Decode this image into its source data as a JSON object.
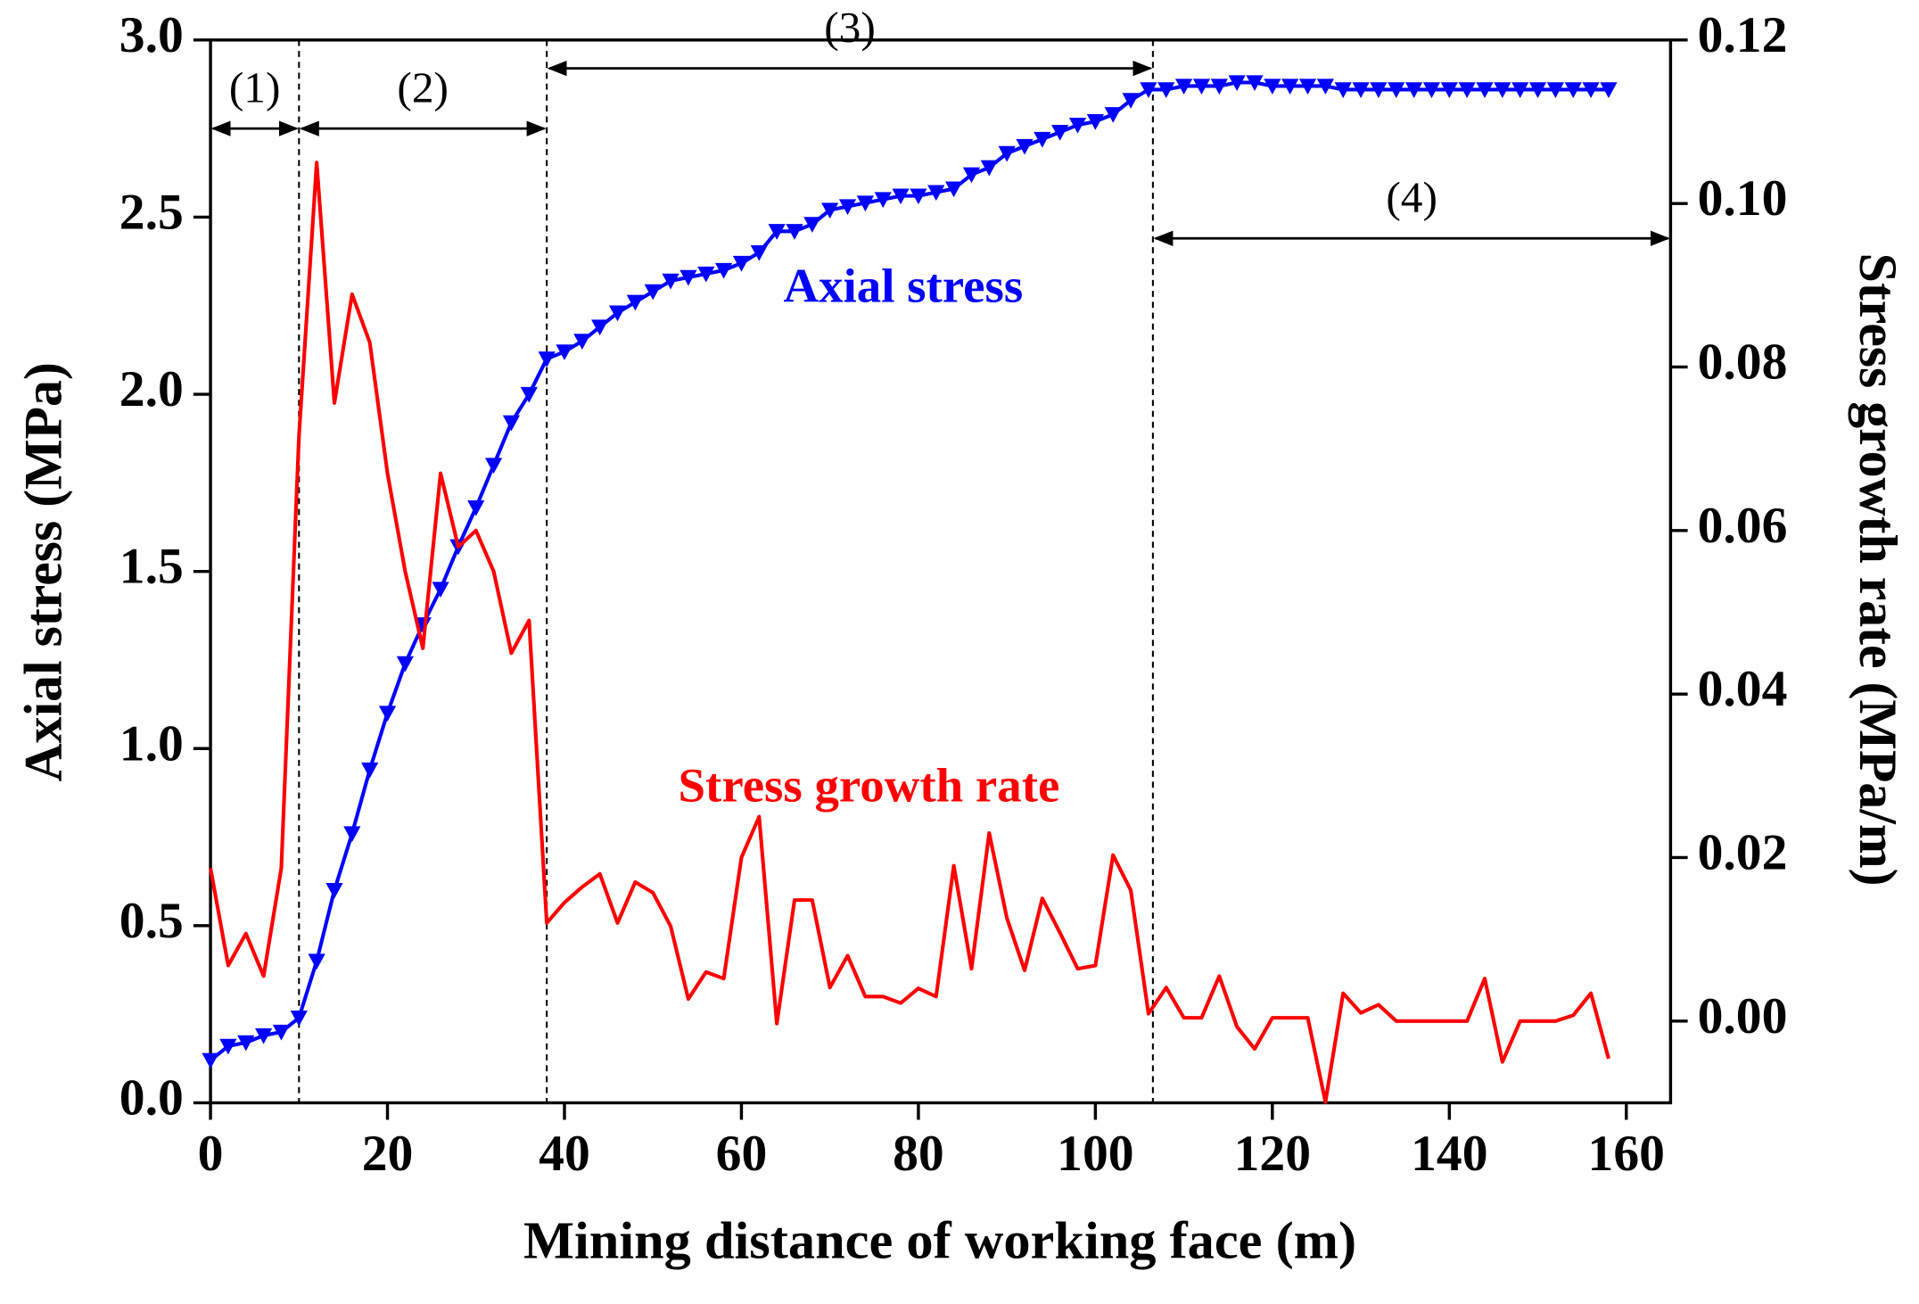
{
  "chart_data": {
    "type": "line",
    "x_label": "Mining distance of working face (m)",
    "y_label": "Axial stress (MPa)",
    "y2_label": "Stress growth rate (MPa/m)",
    "xlim": [
      0,
      165
    ],
    "xticks": [
      0,
      20,
      40,
      60,
      80,
      100,
      120,
      140,
      160
    ],
    "ylim": [
      0,
      3
    ],
    "yticks": [
      {
        "value": 0,
        "label": "0.0"
      },
      0.5,
      {
        "value": 1,
        "label": "1.0"
      },
      1.5,
      {
        "value": 2,
        "label": "2.0"
      },
      2.5,
      {
        "value": 3,
        "label": "3.0"
      }
    ],
    "y2lim": [
      -0.01,
      0.12
    ],
    "y2ticks": [
      {
        "value": 0,
        "label": "0.00"
      },
      0.02,
      0.04,
      0.06,
      0.08,
      {
        "value": 0.1,
        "label": "0.10"
      },
      0.12
    ],
    "x": [
      0,
      2,
      4,
      6,
      8,
      10,
      12,
      14,
      16,
      18,
      20,
      22,
      24,
      26,
      28,
      30,
      32,
      34,
      36,
      38,
      40,
      42,
      44,
      46,
      48,
      50,
      52,
      54,
      56,
      58,
      60,
      62,
      64,
      66,
      68,
      70,
      72,
      74,
      76,
      78,
      80,
      82,
      84,
      86,
      88,
      90,
      92,
      94,
      96,
      98,
      100,
      102,
      104,
      106,
      108,
      110,
      112,
      114,
      116,
      118,
      120,
      122,
      124,
      126,
      128,
      130,
      132,
      134,
      136,
      138,
      140,
      142,
      144,
      146,
      148,
      150,
      152,
      154,
      156,
      158
    ],
    "series": [
      {
        "name": "Axial stress",
        "color": "#0000ff",
        "marker": "triangle-down",
        "values": [
          0.12,
          0.16,
          0.17,
          0.19,
          0.2,
          0.24,
          0.4,
          0.6,
          0.76,
          0.94,
          1.1,
          1.24,
          1.35,
          1.45,
          1.57,
          1.68,
          1.8,
          1.92,
          2.0,
          2.1,
          2.12,
          2.15,
          2.19,
          2.23,
          2.26,
          2.29,
          2.32,
          2.33,
          2.34,
          2.35,
          2.37,
          2.4,
          2.46,
          2.46,
          2.48,
          2.52,
          2.53,
          2.54,
          2.55,
          2.56,
          2.56,
          2.57,
          2.58,
          2.62,
          2.64,
          2.68,
          2.7,
          2.72,
          2.74,
          2.76,
          2.77,
          2.79,
          2.83,
          2.86,
          2.86,
          2.87,
          2.87,
          2.87,
          2.88,
          2.88,
          2.87,
          2.87,
          2.87,
          2.87,
          2.86,
          2.86,
          2.86,
          2.86,
          2.86,
          2.86,
          2.86,
          2.86,
          2.86,
          2.86,
          2.86,
          2.86,
          2.86,
          2.86,
          2.86,
          2.86
        ]
      },
      {
        "name": "Stress growth rate",
        "color": "#ff0000",
        "axis": "y2",
        "values": [
          0.0187,
          0.0068,
          0.0107,
          0.0055,
          0.0187,
          0.0716,
          0.105,
          0.0756,
          0.0889,
          0.083,
          0.067,
          0.055,
          0.0456,
          0.067,
          0.058,
          0.06,
          0.055,
          0.045,
          0.049,
          0.012,
          0.0145,
          0.0164,
          0.018,
          0.012,
          0.017,
          0.0157,
          0.0116,
          0.0027,
          0.006,
          0.0052,
          0.02,
          0.025,
          -0.0003,
          0.0148,
          0.0148,
          0.0041,
          0.008,
          0.003,
          0.003,
          0.0022,
          0.004,
          0.003,
          0.019,
          0.0064,
          0.023,
          0.0126,
          0.0062,
          0.015,
          0.0108,
          0.0064,
          0.0068,
          0.0203,
          0.016,
          0.0009,
          0.0041,
          0.0004,
          0.0004,
          0.0055,
          -0.0007,
          -0.0034,
          0.0004,
          0.0004,
          0.0004,
          -0.0099,
          0.0034,
          0.001,
          0.002,
          0,
          0,
          0,
          0,
          0,
          0.0052,
          -0.005,
          0,
          0,
          0,
          0.0007,
          0.0034,
          -0.0046
        ]
      }
    ],
    "dividers": [
      10,
      38,
      106.5
    ],
    "annotations": [
      {
        "text": "(1)",
        "x": [
          0,
          10
        ],
        "y": 2.75
      },
      {
        "text": "(2)",
        "x": [
          10,
          38
        ],
        "y": 2.75
      },
      {
        "text": "(3)",
        "x": [
          38,
          106.5
        ],
        "y": 2.92
      },
      {
        "text": "(4)",
        "x": [
          106.5,
          165
        ],
        "y": 2.44
      }
    ]
  }
}
